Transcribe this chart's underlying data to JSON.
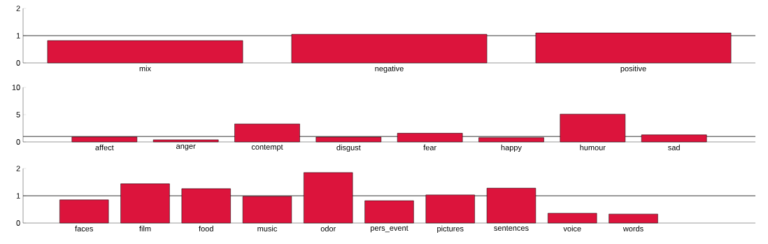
{
  "chart_data": [
    {
      "type": "bar",
      "categories": [
        "mix",
        "negative",
        "positive"
      ],
      "values": [
        0.82,
        1.05,
        1.1
      ],
      "color": "#dc143c",
      "ylim": [
        0,
        2
      ],
      "yticks": [
        0,
        1,
        2
      ],
      "ref_lines": [
        {
          "axis": "y",
          "value": 1,
          "color": "#000000"
        }
      ]
    },
    {
      "type": "bar",
      "categories": [
        "affect",
        "anger",
        "contempt",
        "disgust",
        "fear",
        "happy",
        "humour",
        "sad"
      ],
      "values": [
        0.92,
        0.4,
        3.3,
        0.9,
        1.6,
        0.8,
        5.1,
        1.3
      ],
      "color": "#dc143c",
      "ylim": [
        0,
        10
      ],
      "yticks": [
        0,
        5,
        10
      ],
      "ref_lines": [
        {
          "axis": "y",
          "value": 1,
          "color": "#000000"
        }
      ]
    },
    {
      "type": "bar",
      "categories": [
        "faces",
        "film",
        "food",
        "music",
        "odor",
        "pers_event",
        "pictures",
        "sentences",
        "voice",
        "words"
      ],
      "values": [
        0.85,
        1.44,
        1.26,
        0.98,
        1.85,
        0.82,
        1.03,
        1.28,
        0.36,
        0.33
      ],
      "color": "#dc143c",
      "ylim": [
        0,
        2
      ],
      "yticks": [
        0,
        1,
        2
      ],
      "ref_lines": [
        {
          "axis": "y",
          "value": 1,
          "color": "#000000"
        }
      ]
    }
  ]
}
